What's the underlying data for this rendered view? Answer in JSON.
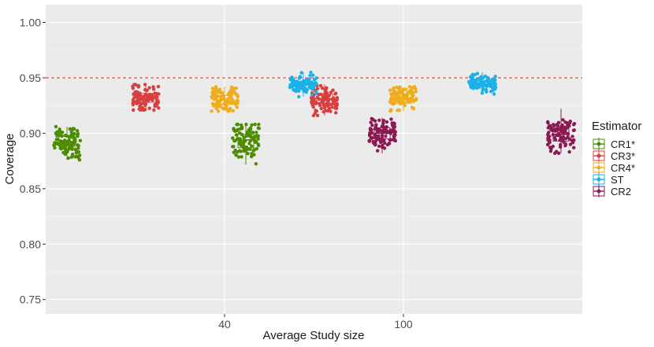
{
  "chart_data": {
    "type": "scatter",
    "subtype": "jittered-points-with-boxplots",
    "title": "",
    "xlabel": "Average Study size",
    "ylabel": "Coverage",
    "categories": [
      "40",
      "100"
    ],
    "ylim": [
      0.737,
      1.016
    ],
    "yticks": [
      0.75,
      0.8,
      0.85,
      0.9,
      0.95,
      1.0
    ],
    "ytick_labels": [
      "0.75",
      "0.80",
      "0.85",
      "0.90",
      "0.95",
      "1.00"
    ],
    "reference_line": {
      "y": 0.95,
      "style": "dashed",
      "color": "#e03c31"
    },
    "grid": true,
    "legend": {
      "title": "Estimator",
      "position": "right"
    },
    "points_per_group": 100,
    "series": [
      {
        "name": "CR1*",
        "color": "#4d8c00",
        "boxes": [
          {
            "category": "40",
            "min": 0.876,
            "q1": 0.886,
            "median": 0.892,
            "q3": 0.897,
            "max": 0.906
          },
          {
            "category": "100",
            "min": 0.872,
            "q1": 0.887,
            "median": 0.894,
            "q3": 0.899,
            "max": 0.908
          }
        ]
      },
      {
        "name": "CR3*",
        "color": "#d93f3f",
        "boxes": [
          {
            "category": "40",
            "min": 0.921,
            "q1": 0.928,
            "median": 0.932,
            "q3": 0.936,
            "max": 0.944
          },
          {
            "category": "100",
            "min": 0.916,
            "q1": 0.927,
            "median": 0.931,
            "q3": 0.935,
            "max": 0.944
          }
        ]
      },
      {
        "name": "CR4*",
        "color": "#f0ad1b",
        "boxes": [
          {
            "category": "40",
            "min": 0.92,
            "q1": 0.926,
            "median": 0.93,
            "q3": 0.934,
            "max": 0.942
          },
          {
            "category": "100",
            "min": 0.92,
            "q1": 0.927,
            "median": 0.932,
            "q3": 0.935,
            "max": 0.942
          }
        ]
      },
      {
        "name": "ST",
        "color": "#1ab1e8",
        "boxes": [
          {
            "category": "40",
            "min": 0.933,
            "q1": 0.941,
            "median": 0.944,
            "q3": 0.947,
            "max": 0.955
          },
          {
            "category": "100",
            "min": 0.935,
            "q1": 0.942,
            "median": 0.944,
            "q3": 0.947,
            "max": 0.955
          }
        ]
      },
      {
        "name": "CR2",
        "color": "#8b1a52",
        "boxes": [
          {
            "category": "40",
            "min": 0.882,
            "q1": 0.895,
            "median": 0.9,
            "q3": 0.905,
            "max": 0.914
          },
          {
            "category": "100",
            "min": 0.882,
            "q1": 0.893,
            "median": 0.899,
            "q3": 0.904,
            "max": 0.922
          }
        ]
      }
    ]
  }
}
